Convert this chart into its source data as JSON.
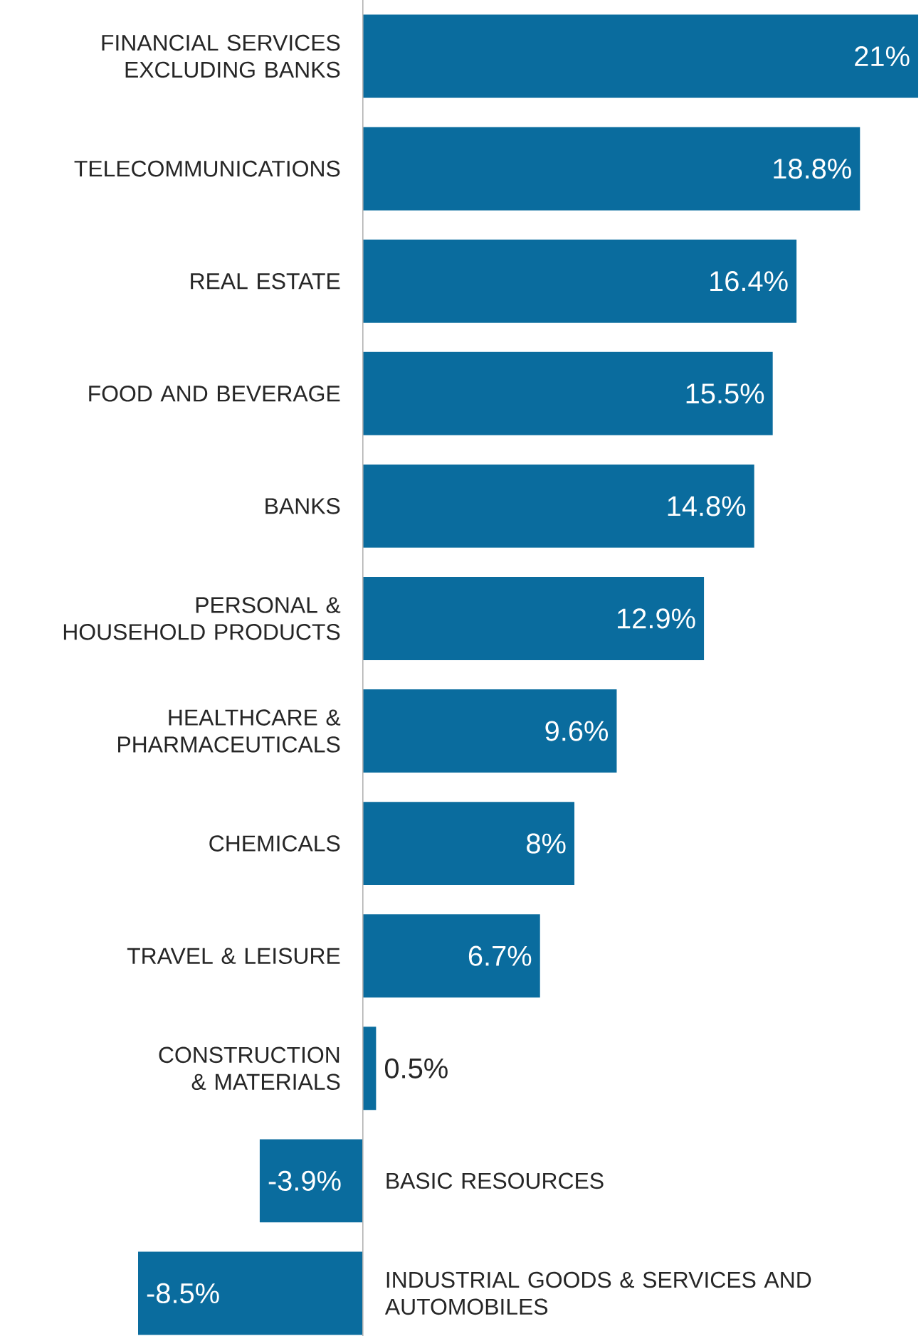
{
  "chart_data": {
    "type": "bar",
    "orientation": "horizontal",
    "color": "#0a6c9e",
    "categories": [
      "FINANCIAL SERVICES EXCLUDING BANKS",
      "TELECOMMUNICATIONS",
      "REAL ESTATE",
      "FOOD AND BEVERAGE",
      "BANKS",
      "PERSONAL & HOUSEHOLD PRODUCTS",
      "HEALTHCARE & PHARMACEUTICALS",
      "CHEMICALS",
      "TRAVEL & LEISURE",
      "CONSTRUCTION & MATERIALS",
      "BASIC RESOURCES",
      "INDUSTRIAL GOODS & SERVICES AND AUTOMOBILES"
    ],
    "values": [
      21,
      18.8,
      16.4,
      15.5,
      14.8,
      12.9,
      9.6,
      8,
      6.7,
      0.5,
      -3.9,
      -8.5
    ],
    "value_labels": [
      "21%",
      "18.8%",
      "16.4%",
      "15.5%",
      "14.8%",
      "12.9%",
      "9.6%",
      "8%",
      "6.7%",
      "0.5%",
      "-3.9%",
      "-8.5%"
    ]
  }
}
